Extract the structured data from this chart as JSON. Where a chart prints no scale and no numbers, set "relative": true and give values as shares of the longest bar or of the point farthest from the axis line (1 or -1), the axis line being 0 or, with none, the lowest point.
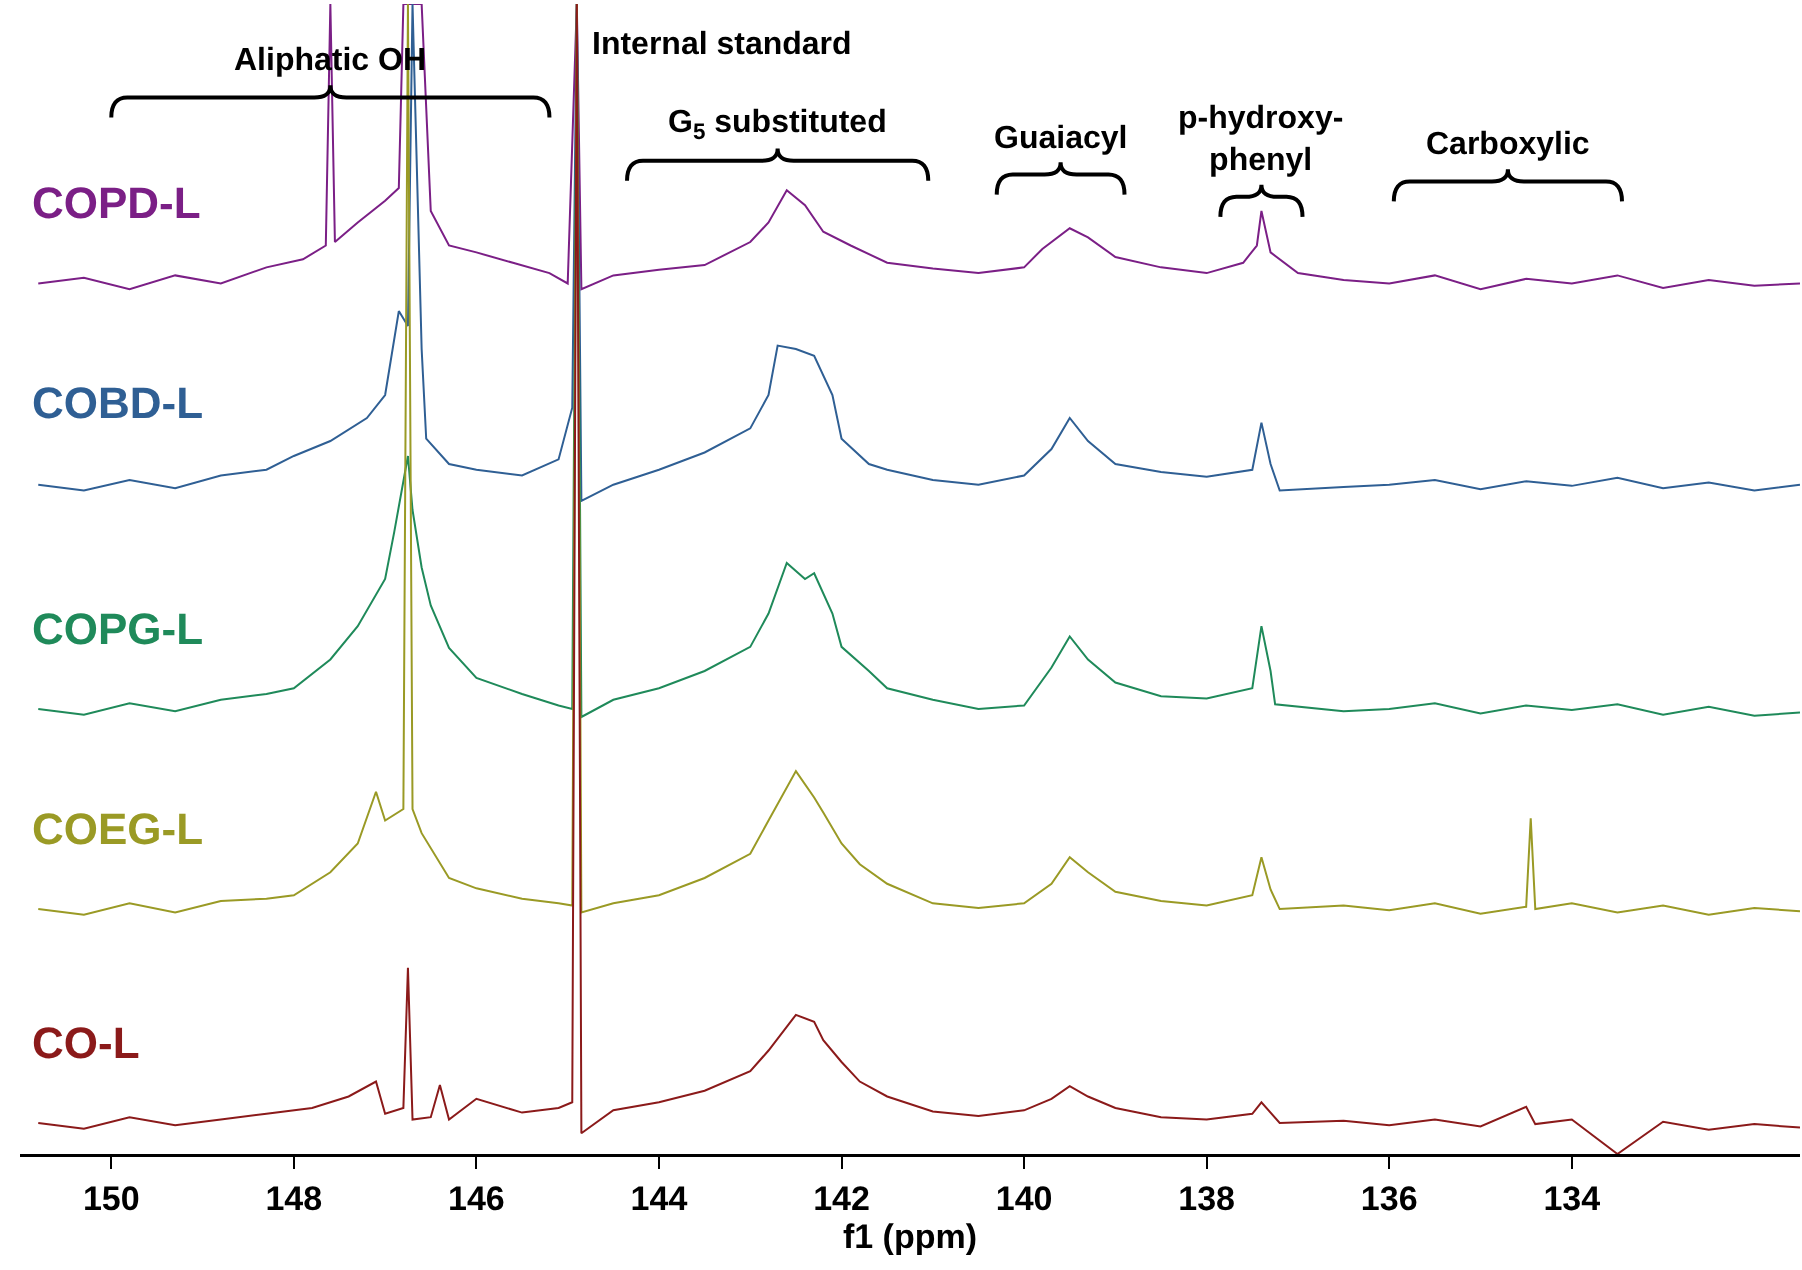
{
  "chart_data": {
    "type": "line",
    "relative": true,
    "xlabel": "f1 (ppm)",
    "xlim": [
      151,
      131.5
    ],
    "xticks": [
      150,
      148,
      146,
      144,
      142,
      140,
      138,
      136,
      134
    ],
    "grid": false,
    "legend": false,
    "marker": "none",
    "line_style": "solid",
    "series": [
      {
        "name": "COPD-L",
        "color": "#7b1f86",
        "x": [
          150.8,
          150.3,
          149.8,
          149.3,
          148.8,
          148.3,
          147.9,
          147.65,
          147.6,
          147.55,
          147.3,
          147.0,
          146.85,
          146.8,
          146.6,
          146.5,
          146.3,
          146.0,
          145.6,
          145.2,
          145.0,
          144.9,
          144.85,
          144.5,
          144.0,
          143.5,
          143.0,
          142.8,
          142.6,
          142.4,
          142.2,
          141.9,
          141.5,
          141.0,
          140.5,
          140.0,
          139.8,
          139.5,
          139.3,
          139.0,
          138.5,
          138.0,
          137.6,
          137.45,
          137.4,
          137.3,
          137.0,
          136.5,
          136.0,
          135.5,
          135.0,
          134.5,
          134.0,
          133.5,
          133.0,
          132.5,
          132.0,
          131.5
        ],
        "values": [
          0.757,
          0.762,
          0.752,
          0.764,
          0.757,
          0.771,
          0.778,
          0.79,
          1,
          0.793,
          0.81,
          0.829,
          0.84,
          1,
          1,
          0.82,
          0.79,
          0.784,
          0.775,
          0.766,
          0.757,
          1,
          0.752,
          0.764,
          0.769,
          0.773,
          0.793,
          0.81,
          0.838,
          0.825,
          0.802,
          0.79,
          0.775,
          0.77,
          0.766,
          0.771,
          0.787,
          0.805,
          0.797,
          0.78,
          0.771,
          0.766,
          0.775,
          0.79,
          0.82,
          0.784,
          0.766,
          0.76,
          0.757,
          0.764,
          0.752,
          0.761,
          0.757,
          0.764,
          0.753,
          0.76,
          0.755,
          0.757
        ]
      },
      {
        "name": "COBD-L",
        "color": "#2f5f94",
        "x": [
          150.8,
          150.3,
          149.8,
          149.3,
          148.8,
          148.3,
          148.0,
          147.6,
          147.2,
          147.0,
          146.85,
          146.75,
          146.7,
          146.6,
          146.55,
          146.3,
          146.0,
          145.5,
          145.1,
          144.95,
          144.9,
          144.85,
          144.5,
          144.0,
          143.5,
          143.0,
          142.8,
          142.7,
          142.5,
          142.3,
          142.1,
          142.0,
          141.7,
          141.5,
          141.0,
          140.5,
          140.0,
          139.7,
          139.5,
          139.3,
          139.0,
          138.5,
          138.0,
          137.5,
          137.4,
          137.3,
          137.2,
          136.5,
          136.0,
          135.5,
          135.0,
          134.5,
          134.0,
          133.5,
          133.0,
          132.5,
          132.0,
          131.5
        ],
        "values": [
          0.582,
          0.577,
          0.586,
          0.579,
          0.59,
          0.595,
          0.607,
          0.62,
          0.64,
          0.66,
          0.733,
          0.72,
          1,
          0.7,
          0.622,
          0.6,
          0.595,
          0.59,
          0.604,
          0.649,
          1,
          0.568,
          0.582,
          0.595,
          0.61,
          0.631,
          0.66,
          0.703,
          0.7,
          0.694,
          0.66,
          0.622,
          0.6,
          0.595,
          0.586,
          0.582,
          0.59,
          0.613,
          0.64,
          0.62,
          0.6,
          0.593,
          0.589,
          0.595,
          0.636,
          0.6,
          0.577,
          0.58,
          0.582,
          0.586,
          0.578,
          0.585,
          0.581,
          0.588,
          0.579,
          0.584,
          0.577,
          0.582
        ]
      },
      {
        "name": "COPG-L",
        "color": "#1f8a5a",
        "x": [
          150.8,
          150.3,
          149.8,
          149.3,
          148.8,
          148.3,
          148.0,
          147.6,
          147.3,
          147.0,
          146.9,
          146.75,
          146.7,
          146.6,
          146.5,
          146.3,
          146.0,
          145.5,
          145.1,
          144.95,
          144.9,
          144.85,
          144.5,
          144.0,
          143.5,
          143.0,
          142.8,
          142.6,
          142.4,
          142.3,
          142.1,
          142.0,
          141.7,
          141.5,
          141.0,
          140.5,
          140.0,
          139.7,
          139.5,
          139.3,
          139.0,
          138.5,
          138.0,
          137.5,
          137.4,
          137.3,
          137.25,
          136.5,
          136.0,
          135.5,
          135.0,
          134.5,
          134.0,
          133.5,
          133.0,
          132.5,
          132.0,
          131.5
        ],
        "values": [
          0.387,
          0.382,
          0.392,
          0.385,
          0.395,
          0.4,
          0.405,
          0.43,
          0.459,
          0.5,
          0.541,
          0.607,
          0.56,
          0.51,
          0.477,
          0.44,
          0.414,
          0.4,
          0.39,
          0.387,
          1,
          0.38,
          0.395,
          0.405,
          0.42,
          0.441,
          0.47,
          0.514,
          0.5,
          0.505,
          0.47,
          0.441,
          0.42,
          0.405,
          0.395,
          0.387,
          0.39,
          0.423,
          0.45,
          0.43,
          0.41,
          0.398,
          0.396,
          0.405,
          0.459,
          0.42,
          0.391,
          0.385,
          0.387,
          0.392,
          0.383,
          0.39,
          0.386,
          0.391,
          0.382,
          0.389,
          0.381,
          0.384
        ]
      },
      {
        "name": "COEG-L",
        "color": "#9a9a25",
        "x": [
          150.8,
          150.3,
          149.8,
          149.3,
          148.8,
          148.3,
          148.0,
          147.6,
          147.3,
          147.1,
          147.0,
          146.8,
          146.75,
          146.7,
          146.6,
          146.3,
          146.0,
          145.5,
          145.1,
          144.95,
          144.9,
          144.85,
          144.5,
          144.0,
          143.5,
          143.0,
          142.8,
          142.5,
          142.3,
          142.2,
          142.0,
          141.8,
          141.5,
          141.0,
          140.5,
          140.0,
          139.7,
          139.5,
          139.3,
          139.0,
          138.5,
          138.0,
          137.5,
          137.4,
          137.3,
          137.2,
          136.5,
          136.0,
          135.5,
          135.0,
          134.5,
          134.45,
          134.4,
          134.0,
          133.5,
          133.0,
          132.5,
          132.0,
          131.5
        ],
        "values": [
          0.213,
          0.208,
          0.218,
          0.21,
          0.22,
          0.222,
          0.225,
          0.245,
          0.27,
          0.315,
          0.29,
          0.3,
          1,
          0.3,
          0.279,
          0.24,
          0.231,
          0.222,
          0.218,
          0.216,
          1,
          0.21,
          0.218,
          0.225,
          0.24,
          0.261,
          0.29,
          0.333,
          0.31,
          0.297,
          0.27,
          0.252,
          0.235,
          0.218,
          0.214,
          0.218,
          0.235,
          0.258,
          0.245,
          0.228,
          0.22,
          0.216,
          0.225,
          0.258,
          0.23,
          0.213,
          0.216,
          0.212,
          0.218,
          0.209,
          0.215,
          0.292,
          0.213,
          0.218,
          0.21,
          0.216,
          0.208,
          0.214,
          0.211
        ]
      },
      {
        "name": "CO-L",
        "color": "#8b1a1a",
        "x": [
          150.8,
          150.3,
          149.8,
          149.3,
          148.8,
          148.3,
          147.8,
          147.4,
          147.1,
          147.0,
          146.8,
          146.75,
          146.7,
          146.5,
          146.4,
          146.3,
          146.0,
          145.5,
          145.1,
          144.95,
          144.9,
          144.85,
          144.5,
          144.0,
          143.5,
          143.0,
          142.8,
          142.5,
          142.3,
          142.2,
          142.0,
          141.8,
          141.5,
          141.0,
          140.5,
          140.0,
          139.7,
          139.5,
          139.3,
          139.0,
          138.5,
          138.0,
          137.5,
          137.4,
          137.2,
          136.5,
          136.0,
          135.5,
          135.0,
          134.5,
          134.4,
          134.0,
          133.5,
          133.0,
          132.5,
          132.0,
          131.5
        ],
        "values": [
          0.027,
          0.022,
          0.032,
          0.025,
          0.03,
          0.035,
          0.04,
          0.05,
          0.063,
          0.035,
          0.04,
          0.162,
          0.03,
          0.032,
          0.06,
          0.03,
          0.048,
          0.036,
          0.04,
          0.045,
          1,
          0.018,
          0.038,
          0.045,
          0.055,
          0.072,
          0.09,
          0.121,
          0.115,
          0.099,
          0.08,
          0.063,
          0.05,
          0.037,
          0.033,
          0.038,
          0.048,
          0.059,
          0.05,
          0.04,
          0.032,
          0.03,
          0.035,
          0.045,
          0.027,
          0.029,
          0.025,
          0.03,
          0.024,
          0.041,
          0.026,
          0.03,
          0,
          0.028,
          0.021,
          0.026,
          0.023
        ]
      }
    ],
    "annotations": [
      {
        "text": "Internal standard",
        "x": 144.9,
        "y": 0.965
      },
      "Aliphatic OH",
      "G$_{5}$ substituted",
      "Guaiacyl",
      "p-hydroxy-\nphenyl",
      "Carboxylic"
    ]
  }
}
